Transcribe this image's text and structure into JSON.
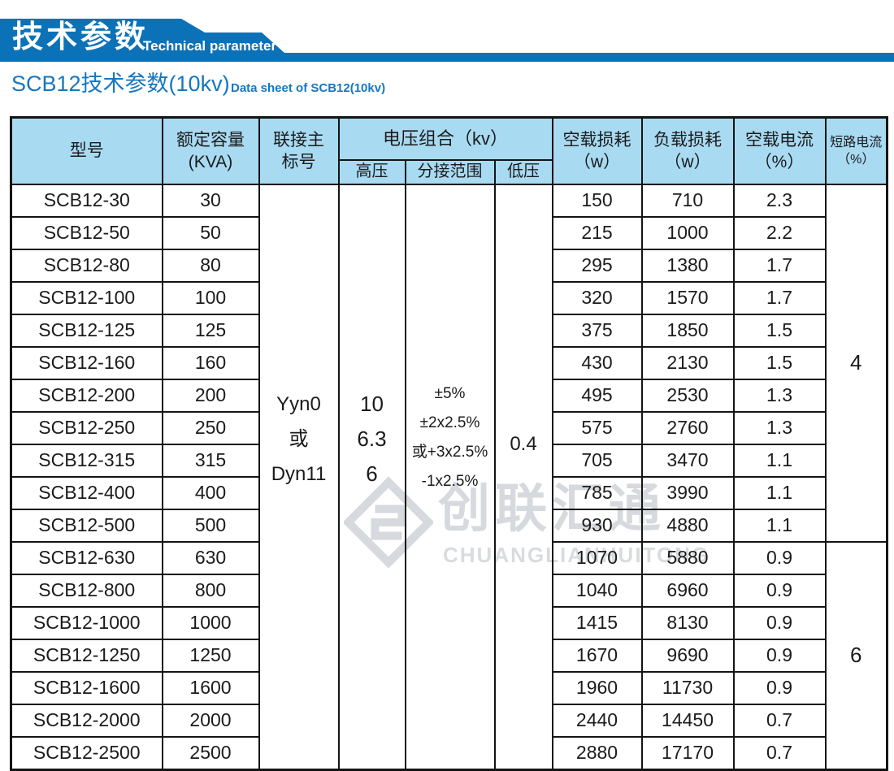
{
  "banner": {
    "title": "技术参数",
    "subtitle": "Technical parameter"
  },
  "page": {
    "heading_cn": "SCB12技术参数(10kv)",
    "heading_en": "Data sheet of SCB12(10kv)"
  },
  "colors": {
    "banner_blue": "#0c72b8",
    "heading_text_blue": "#1577c0",
    "table_header_bg": "#a8daf2",
    "table_border": "#141414",
    "watermark_gray": "#d6d9dd"
  },
  "watermark": {
    "logo": "diamond-interlock-logo",
    "cn": "创联汇通",
    "en": "CHUANGLIANHUITONG"
  },
  "table": {
    "headers": {
      "model": "型号",
      "capacity_l1": "额定容量",
      "capacity_l2": "(KVA)",
      "vector_l1": "联接主",
      "vector_l2": "标号",
      "voltage_group": "电压组合（kv）",
      "hv": "高压",
      "tap": "分接范围",
      "lv": "低压",
      "no_load_loss_l1": "空载损耗",
      "no_load_loss_l2": "（w）",
      "load_loss_l1": "负载损耗",
      "load_loss_l2": "（w）",
      "no_load_current_l1": "空载电流",
      "no_load_current_l2": "（%）",
      "short_circuit_l1": "短路电流",
      "short_circuit_l2": "（%）"
    },
    "merged": {
      "vector_lines": [
        "Yyn0",
        "或",
        "Dyn11"
      ],
      "hv_lines": [
        "10",
        "6.3",
        "6"
      ],
      "tap_lines": [
        "±5%",
        "±2x2.5%",
        "或+3x2.5%",
        "-1x2.5%"
      ],
      "lv": "0.4",
      "short_circuit_groups": [
        {
          "value": "4",
          "rows": 11
        },
        {
          "value": "6",
          "rows": 7
        }
      ]
    },
    "rows": [
      [
        "SCB12-30",
        "30",
        "150",
        "710",
        "2.3"
      ],
      [
        "SCB12-50",
        "50",
        "215",
        "1000",
        "2.2"
      ],
      [
        "SCB12-80",
        "80",
        "295",
        "1380",
        "1.7"
      ],
      [
        "SCB12-100",
        "100",
        "320",
        "1570",
        "1.7"
      ],
      [
        "SCB12-125",
        "125",
        "375",
        "1850",
        "1.5"
      ],
      [
        "SCB12-160",
        "160",
        "430",
        "2130",
        "1.5"
      ],
      [
        "SCB12-200",
        "200",
        "495",
        "2530",
        "1.3"
      ],
      [
        "SCB12-250",
        "250",
        "575",
        "2760",
        "1.3"
      ],
      [
        "SCB12-315",
        "315",
        "705",
        "3470",
        "1.1"
      ],
      [
        "SCB12-400",
        "400",
        "785",
        "3990",
        "1.1"
      ],
      [
        "SCB12-500",
        "500",
        "930",
        "4880",
        "1.1"
      ],
      [
        "SCB12-630",
        "630",
        "1070",
        "5880",
        "0.9"
      ],
      [
        "SCB12-800",
        "800",
        "1040",
        "6960",
        "0.9"
      ],
      [
        "SCB12-1000",
        "1000",
        "1415",
        "8130",
        "0.9"
      ],
      [
        "SCB12-1250",
        "1250",
        "1670",
        "9690",
        "0.9"
      ],
      [
        "SCB12-1600",
        "1600",
        "1960",
        "11730",
        "0.9"
      ],
      [
        "SCB12-2000",
        "2000",
        "2440",
        "14450",
        "0.7"
      ],
      [
        "SCB12-2500",
        "2500",
        "2880",
        "17170",
        "0.7"
      ]
    ]
  }
}
